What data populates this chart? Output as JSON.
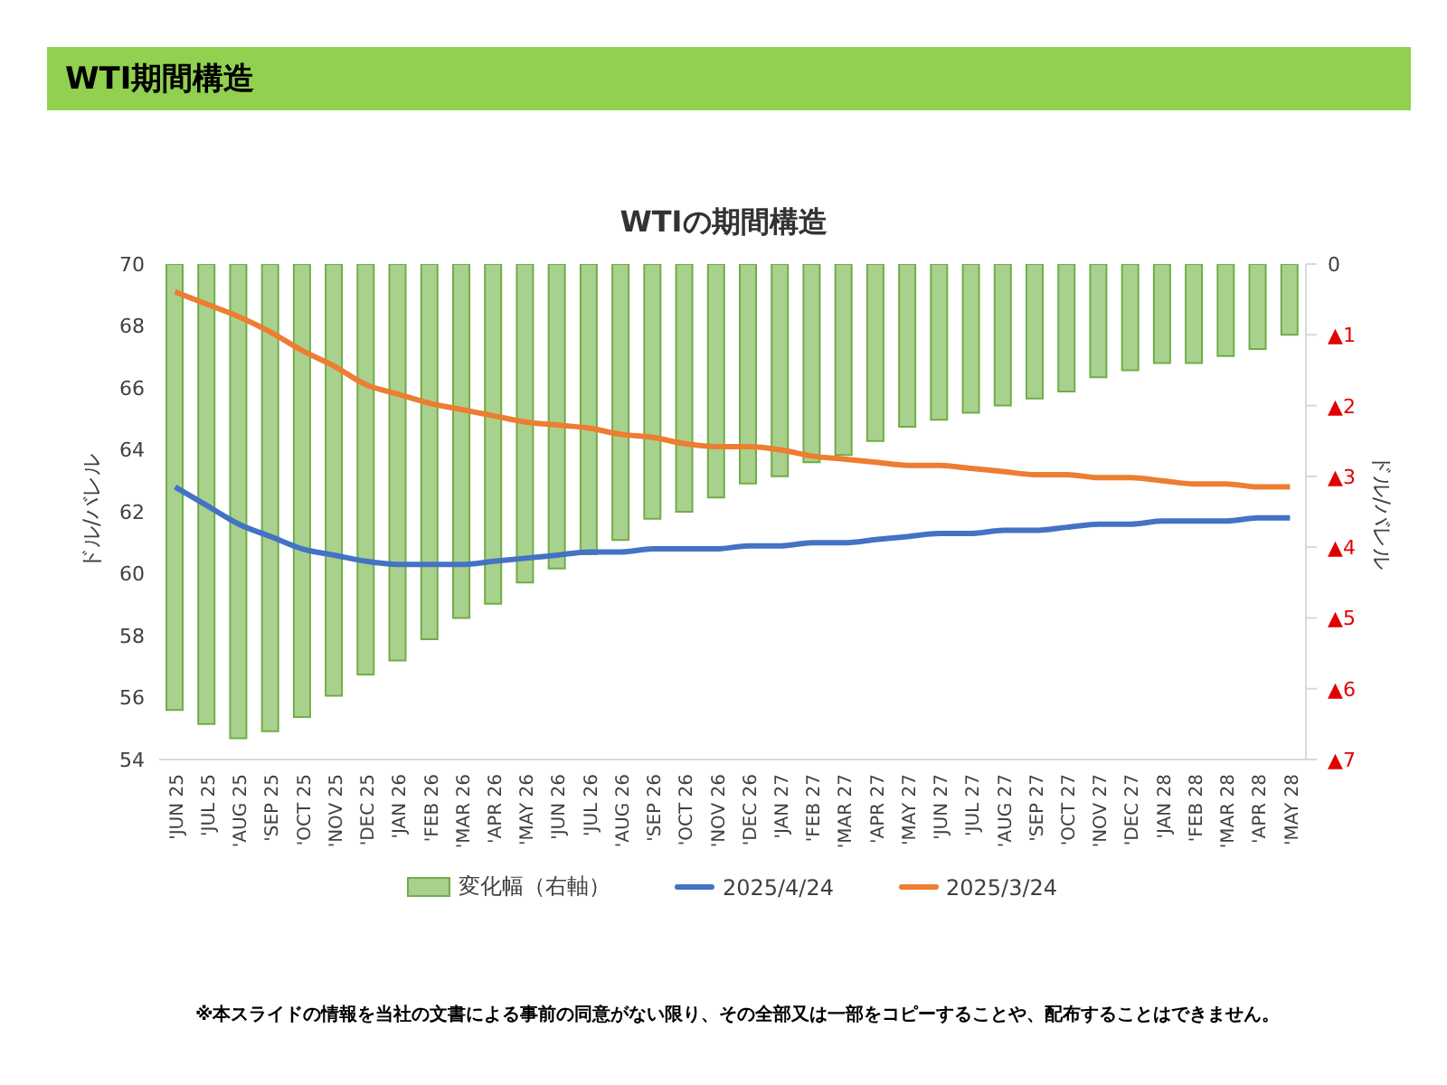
{
  "chart_data": {
    "type": "bar",
    "title": "WTI期間構造",
    "subtitle": "WTIの期間構造",
    "categories": [
      "'JUN 25",
      "'JUL 25",
      "'AUG 25",
      "'SEP 25",
      "'OCT 25",
      "'NOV 25",
      "'DEC 25",
      "'JAN 26",
      "'FEB 26",
      "'MAR 26",
      "'APR 26",
      "'MAY 26",
      "'JUN 26",
      "'JUL 26",
      "'AUG 26",
      "'SEP 26",
      "'OCT 26",
      "'NOV 26",
      "'DEC 26",
      "'JAN 27",
      "'FEB 27",
      "'MAR 27",
      "'APR 27",
      "'MAY 27",
      "'JUN 27",
      "'JUL 27",
      "'AUG 27",
      "'SEP 27",
      "'OCT 27",
      "'NOV 27",
      "'DEC 27",
      "'JAN 28",
      "'FEB 28",
      "'MAR 28",
      "'APR 28",
      "'MAY 28"
    ],
    "series": [
      {
        "name": "変化幅（右軸）",
        "axis": "y2",
        "color": "#a9d18e",
        "values": [
          -6.3,
          -6.5,
          -6.7,
          -6.6,
          -6.4,
          -6.1,
          -5.8,
          -5.6,
          -5.3,
          -5.0,
          -4.8,
          -4.5,
          -4.3,
          -4.1,
          -3.9,
          -3.6,
          -3.5,
          -3.3,
          -3.1,
          -3.0,
          -2.8,
          -2.7,
          -2.5,
          -2.3,
          -2.2,
          -2.1,
          -2.0,
          -1.9,
          -1.8,
          -1.6,
          -1.5,
          -1.4,
          -1.4,
          -1.3,
          -1.2,
          -1.0
        ]
      },
      {
        "name": "2025/4/24",
        "type": "line",
        "color": "#4472c4",
        "values": [
          62.8,
          62.2,
          61.6,
          61.2,
          60.8,
          60.6,
          60.4,
          60.3,
          60.3,
          60.3,
          60.4,
          60.5,
          60.6,
          60.7,
          60.7,
          60.8,
          60.8,
          60.8,
          60.9,
          60.9,
          61.0,
          61.0,
          61.1,
          61.2,
          61.3,
          61.3,
          61.4,
          61.4,
          61.5,
          61.6,
          61.6,
          61.7,
          61.7,
          61.7,
          61.8,
          61.8
        ]
      },
      {
        "name": "2025/3/24",
        "type": "line",
        "color": "#ed7d31",
        "values": [
          69.1,
          68.7,
          68.3,
          67.8,
          67.2,
          66.7,
          66.1,
          65.8,
          65.5,
          65.3,
          65.1,
          64.9,
          64.8,
          64.7,
          64.5,
          64.4,
          64.2,
          64.1,
          64.1,
          64.0,
          63.8,
          63.7,
          63.6,
          63.5,
          63.5,
          63.4,
          63.3,
          63.2,
          63.2,
          63.1,
          63.1,
          63.0,
          62.9,
          62.9,
          62.8,
          62.8
        ]
      }
    ],
    "ylim": [
      54,
      70
    ],
    "yticks": [
      54,
      56,
      58,
      60,
      62,
      64,
      66,
      68,
      70
    ],
    "y2lim": [
      -7,
      0
    ],
    "y2ticks": [
      {
        "value": -7,
        "label": "▲7"
      },
      {
        "value": -6,
        "label": "▲6"
      },
      {
        "value": -5,
        "label": "▲5"
      },
      {
        "value": -4,
        "label": "▲4"
      },
      {
        "value": -3,
        "label": "▲3"
      },
      {
        "value": -2,
        "label": "▲2"
      },
      {
        "value": -1,
        "label": "▲1"
      },
      0
    ],
    "ylabel": "ドル/バレル",
    "y2label": "ドル/バレル",
    "legend": "bottom",
    "marker": "none",
    "annotations": [
      "※本スライドの情報を当社の文書による事前の同意がない限り、その全部又は一部をコピーすることや、配布することはできません。"
    ]
  }
}
